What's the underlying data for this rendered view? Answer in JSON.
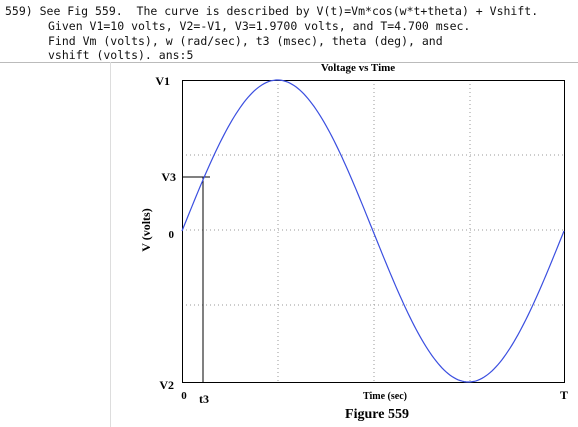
{
  "question": {
    "lines": [
      "559) See Fig 559.  The curve is described by V(t)=Vm*cos(w*t+theta) + Vshift.",
      "Given V1=10 volts, V2=-V1, V3=1.9700 volts, and T=4.700 msec.",
      "Find Vm (volts), w (rad/sec), t3 (msec), theta (deg), and",
      "vshift (volts). ans:5"
    ]
  },
  "figure": {
    "title": "Voltage vs Time",
    "y_label": "V (volts)",
    "x_label": "Time (sec)",
    "caption": "Figure 559",
    "y_marks": [
      "V1",
      "V3",
      "0",
      "V2"
    ],
    "x_marks": [
      "0",
      "t3",
      "T"
    ]
  }
}
